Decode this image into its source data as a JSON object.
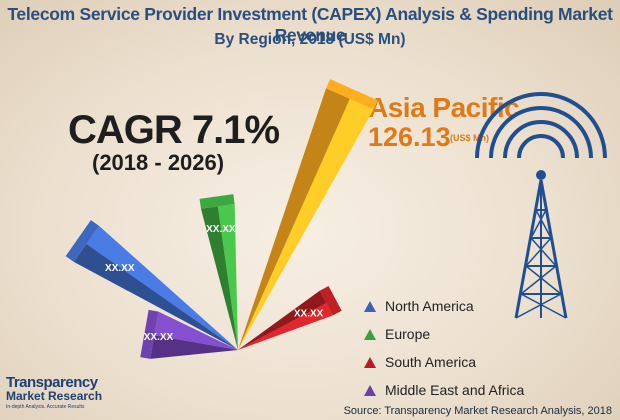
{
  "header": {
    "title": "Telecom Service Provider Investment (CAPEX) Analysis & Spending Market Revenue",
    "subtitle": "By Region, 2018 (US$ Mn)"
  },
  "cagr": {
    "label": "CAGR 7.1%",
    "period": "(2018 - 2026)"
  },
  "highlight": {
    "region": "Asia Pacific",
    "value": "126.13",
    "unit": "(US$ Mn)"
  },
  "chart_data": {
    "type": "bar",
    "title": "Telecom Service Provider Investment (CAPEX) Analysis & Spending Market Revenue",
    "subtitle": "By Region, 2018 (US$ Mn)",
    "categories": [
      "North America",
      "Europe",
      "Asia Pacific",
      "South America",
      "Middle East and Africa"
    ],
    "values": [
      null,
      null,
      126.13,
      null,
      null
    ],
    "value_labels": [
      "XX.XX",
      "XX.XX",
      "126.13",
      "XX.XX",
      "XX.XX"
    ],
    "colors": [
      "#3a63b6",
      "#3aa03c",
      "#f5a51e",
      "#b51e22",
      "#6a3fa8"
    ],
    "legend": [
      {
        "label": "North America",
        "color": "#3a63b6"
      },
      {
        "label": "Europe",
        "color": "#3aa03c"
      },
      {
        "label": "South America",
        "color": "#b51e22"
      },
      {
        "label": "Middle East and Africa",
        "color": "#6a3fa8"
      }
    ],
    "legend_position": "bottom-right",
    "xlabel": "",
    "ylabel": ""
  },
  "source": "Source: Transparency Market Research Analysis, 2018",
  "logo": {
    "name": "Transparency",
    "sub": "Market Research",
    "tagline": "In-depth Analysis. Accurate Results"
  },
  "icons": {
    "tower": "radio-tower-icon"
  }
}
